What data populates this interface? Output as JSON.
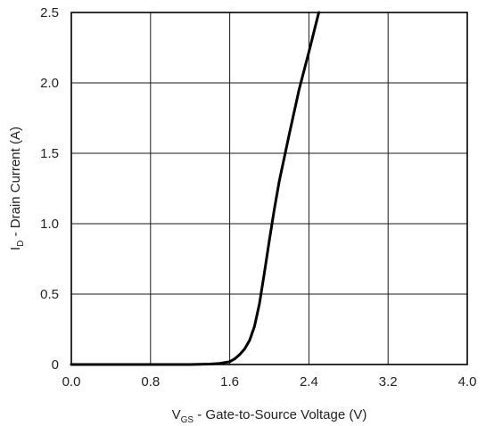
{
  "chart_data": {
    "type": "line",
    "xlabel": {
      "main": "V",
      "sub": "GS",
      "rest": " - Gate-to-Source Voltage (V)"
    },
    "ylabel": {
      "main": "I",
      "sub": "D",
      "rest": " - Drain Current (A)"
    },
    "xlim": [
      0,
      4.0
    ],
    "ylim": [
      0,
      2.5
    ],
    "xticks": [
      "0.0",
      "0.8",
      "1.6",
      "2.4",
      "3.2",
      "4.0"
    ],
    "yticks": [
      "0",
      "0.5",
      "1.0",
      "1.5",
      "2.0",
      "2.5"
    ],
    "grid": true,
    "series": [
      {
        "color": "#000000",
        "x": [
          0.0,
          0.8,
          1.2,
          1.4,
          1.5,
          1.6,
          1.65,
          1.7,
          1.75,
          1.8,
          1.85,
          1.9,
          1.95,
          2.0,
          2.05,
          2.1,
          2.2,
          2.3,
          2.4,
          2.5
        ],
        "y": [
          0.0,
          0.0,
          0.0,
          0.003,
          0.008,
          0.02,
          0.04,
          0.07,
          0.11,
          0.17,
          0.27,
          0.43,
          0.65,
          0.88,
          1.1,
          1.3,
          1.63,
          1.95,
          2.22,
          2.5
        ]
      }
    ]
  }
}
